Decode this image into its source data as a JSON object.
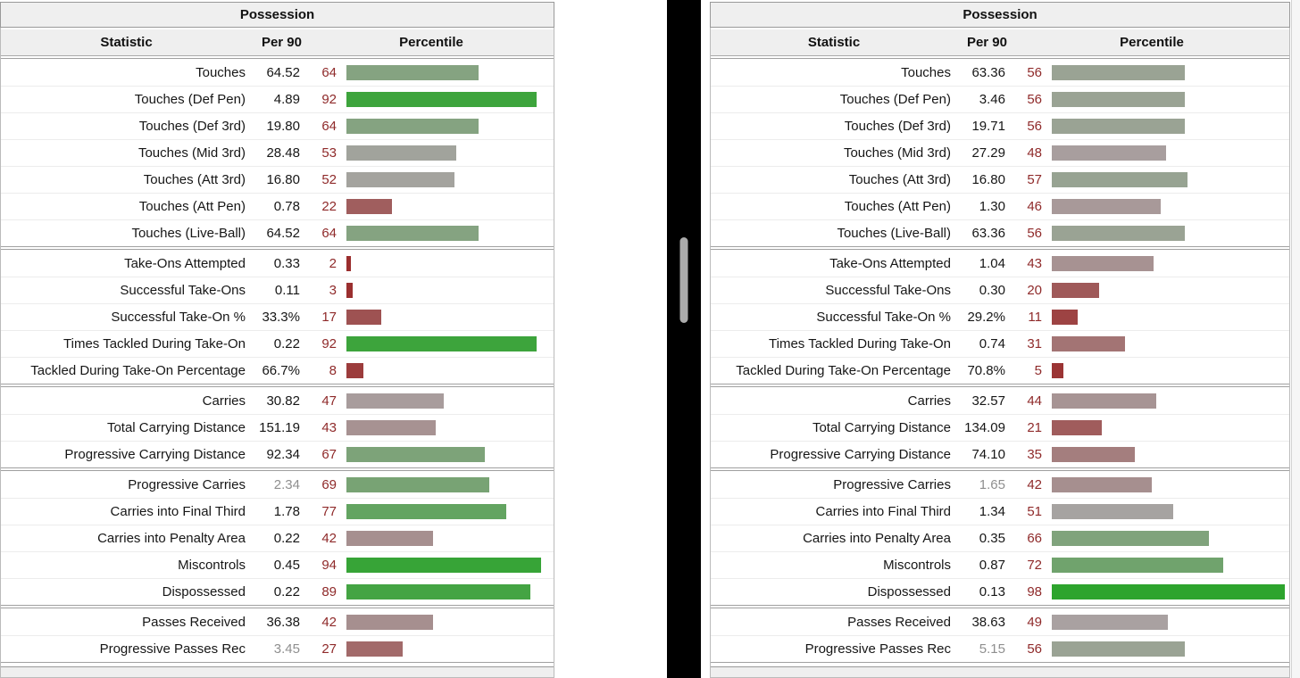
{
  "colors": {
    "percentile_text": "#8f2a2a",
    "bar_green": "#28a428",
    "bar_red": "#992828",
    "bar_neutral": "#a9a3a3",
    "header_bg": "#efefef",
    "border": "#999999",
    "divider_black": "#000000"
  },
  "chart_data": [
    {
      "type": "table",
      "title": "Possession",
      "columns": [
        "Statistic",
        "Per 90",
        "Percentile"
      ],
      "percentile_axis": [
        0,
        100
      ],
      "groups": [
        {
          "rows": [
            {
              "stat": "Touches",
              "per90": "64.52",
              "pct": 64
            },
            {
              "stat": "Touches (Def Pen)",
              "per90": "4.89",
              "pct": 92
            },
            {
              "stat": "Touches (Def 3rd)",
              "per90": "19.80",
              "pct": 64
            },
            {
              "stat": "Touches (Mid 3rd)",
              "per90": "28.48",
              "pct": 53
            },
            {
              "stat": "Touches (Att 3rd)",
              "per90": "16.80",
              "pct": 52
            },
            {
              "stat": "Touches (Att Pen)",
              "per90": "0.78",
              "pct": 22
            },
            {
              "stat": "Touches (Live-Ball)",
              "per90": "64.52",
              "pct": 64
            }
          ]
        },
        {
          "rows": [
            {
              "stat": "Take-Ons Attempted",
              "per90": "0.33",
              "pct": 2
            },
            {
              "stat": "Successful Take-Ons",
              "per90": "0.11",
              "pct": 3
            },
            {
              "stat": "Successful Take-On %",
              "per90": "33.3%",
              "pct": 17
            },
            {
              "stat": "Times Tackled During Take-On",
              "per90": "0.22",
              "pct": 92
            },
            {
              "stat": "Tackled During Take-On Percentage",
              "per90": "66.7%",
              "pct": 8
            }
          ]
        },
        {
          "rows": [
            {
              "stat": "Carries",
              "per90": "30.82",
              "pct": 47
            },
            {
              "stat": "Total Carrying Distance",
              "per90": "151.19",
              "pct": 43
            },
            {
              "stat": "Progressive Carrying Distance",
              "per90": "92.34",
              "pct": 67
            }
          ]
        },
        {
          "rows": [
            {
              "stat": "Progressive Carries",
              "per90": "2.34",
              "pct": 69,
              "muted": true
            },
            {
              "stat": "Carries into Final Third",
              "per90": "1.78",
              "pct": 77
            },
            {
              "stat": "Carries into Penalty Area",
              "per90": "0.22",
              "pct": 42
            },
            {
              "stat": "Miscontrols",
              "per90": "0.45",
              "pct": 94
            },
            {
              "stat": "Dispossessed",
              "per90": "0.22",
              "pct": 89
            }
          ]
        },
        {
          "rows": [
            {
              "stat": "Passes Received",
              "per90": "36.38",
              "pct": 42
            },
            {
              "stat": "Progressive Passes Rec",
              "per90": "3.45",
              "pct": 27,
              "muted": true
            }
          ]
        }
      ]
    },
    {
      "type": "table",
      "title": "Possession",
      "columns": [
        "Statistic",
        "Per 90",
        "Percentile"
      ],
      "percentile_axis": [
        0,
        100
      ],
      "groups": [
        {
          "rows": [
            {
              "stat": "Touches",
              "per90": "63.36",
              "pct": 56
            },
            {
              "stat": "Touches (Def Pen)",
              "per90": "3.46",
              "pct": 56
            },
            {
              "stat": "Touches (Def 3rd)",
              "per90": "19.71",
              "pct": 56
            },
            {
              "stat": "Touches (Mid 3rd)",
              "per90": "27.29",
              "pct": 48
            },
            {
              "stat": "Touches (Att 3rd)",
              "per90": "16.80",
              "pct": 57
            },
            {
              "stat": "Touches (Att Pen)",
              "per90": "1.30",
              "pct": 46
            },
            {
              "stat": "Touches (Live-Ball)",
              "per90": "63.36",
              "pct": 56
            }
          ]
        },
        {
          "rows": [
            {
              "stat": "Take-Ons Attempted",
              "per90": "1.04",
              "pct": 43
            },
            {
              "stat": "Successful Take-Ons",
              "per90": "0.30",
              "pct": 20
            },
            {
              "stat": "Successful Take-On %",
              "per90": "29.2%",
              "pct": 11
            },
            {
              "stat": "Times Tackled During Take-On",
              "per90": "0.74",
              "pct": 31
            },
            {
              "stat": "Tackled During Take-On Percentage",
              "per90": "70.8%",
              "pct": 5
            }
          ]
        },
        {
          "rows": [
            {
              "stat": "Carries",
              "per90": "32.57",
              "pct": 44
            },
            {
              "stat": "Total Carrying Distance",
              "per90": "134.09",
              "pct": 21
            },
            {
              "stat": "Progressive Carrying Distance",
              "per90": "74.10",
              "pct": 35
            }
          ]
        },
        {
          "rows": [
            {
              "stat": "Progressive Carries",
              "per90": "1.65",
              "pct": 42,
              "muted": true
            },
            {
              "stat": "Carries into Final Third",
              "per90": "1.34",
              "pct": 51
            },
            {
              "stat": "Carries into Penalty Area",
              "per90": "0.35",
              "pct": 66
            },
            {
              "stat": "Miscontrols",
              "per90": "0.87",
              "pct": 72
            },
            {
              "stat": "Dispossessed",
              "per90": "0.13",
              "pct": 98
            }
          ]
        },
        {
          "rows": [
            {
              "stat": "Passes Received",
              "per90": "38.63",
              "pct": 49
            },
            {
              "stat": "Progressive Passes Rec",
              "per90": "5.15",
              "pct": 56,
              "muted": true
            }
          ]
        }
      ]
    }
  ]
}
